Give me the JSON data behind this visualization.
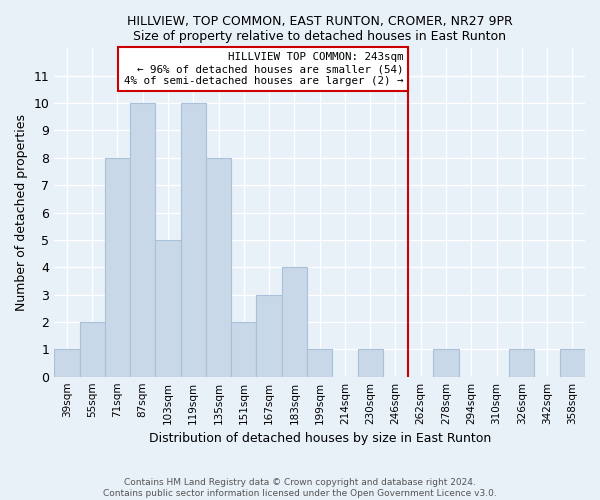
{
  "title": "HILLVIEW, TOP COMMON, EAST RUNTON, CROMER, NR27 9PR",
  "subtitle": "Size of property relative to detached houses in East Runton",
  "xlabel": "Distribution of detached houses by size in East Runton",
  "ylabel": "Number of detached properties",
  "footer_line1": "Contains HM Land Registry data © Crown copyright and database right 2024.",
  "footer_line2": "Contains public sector information licensed under the Open Government Licence v3.0.",
  "bar_labels": [
    "39sqm",
    "55sqm",
    "71sqm",
    "87sqm",
    "103sqm",
    "119sqm",
    "135sqm",
    "151sqm",
    "167sqm",
    "183sqm",
    "199sqm",
    "214sqm",
    "230sqm",
    "246sqm",
    "262sqm",
    "278sqm",
    "294sqm",
    "310sqm",
    "326sqm",
    "342sqm",
    "358sqm"
  ],
  "bar_values": [
    1,
    2,
    8,
    10,
    5,
    10,
    8,
    2,
    3,
    4,
    1,
    0,
    1,
    0,
    0,
    1,
    0,
    0,
    1,
    0,
    1
  ],
  "bar_color": "#c8d8e8",
  "bar_edgecolor": "#a8c0d8",
  "background_color": "#e8f0f8",
  "grid_color": "#ffffff",
  "vline_x": 13.5,
  "vline_color": "#cc0000",
  "annotation_title": "HILLVIEW TOP COMMON: 243sqm",
  "annotation_line2": "← 96% of detached houses are smaller (54)",
  "annotation_line3": "4% of semi-detached houses are larger (2) →",
  "annotation_box_color": "#ffffff",
  "annotation_border_color": "#cc0000",
  "ylim": [
    0,
    12
  ],
  "yticks": [
    0,
    1,
    2,
    3,
    4,
    5,
    6,
    7,
    8,
    9,
    10,
    11,
    12
  ]
}
